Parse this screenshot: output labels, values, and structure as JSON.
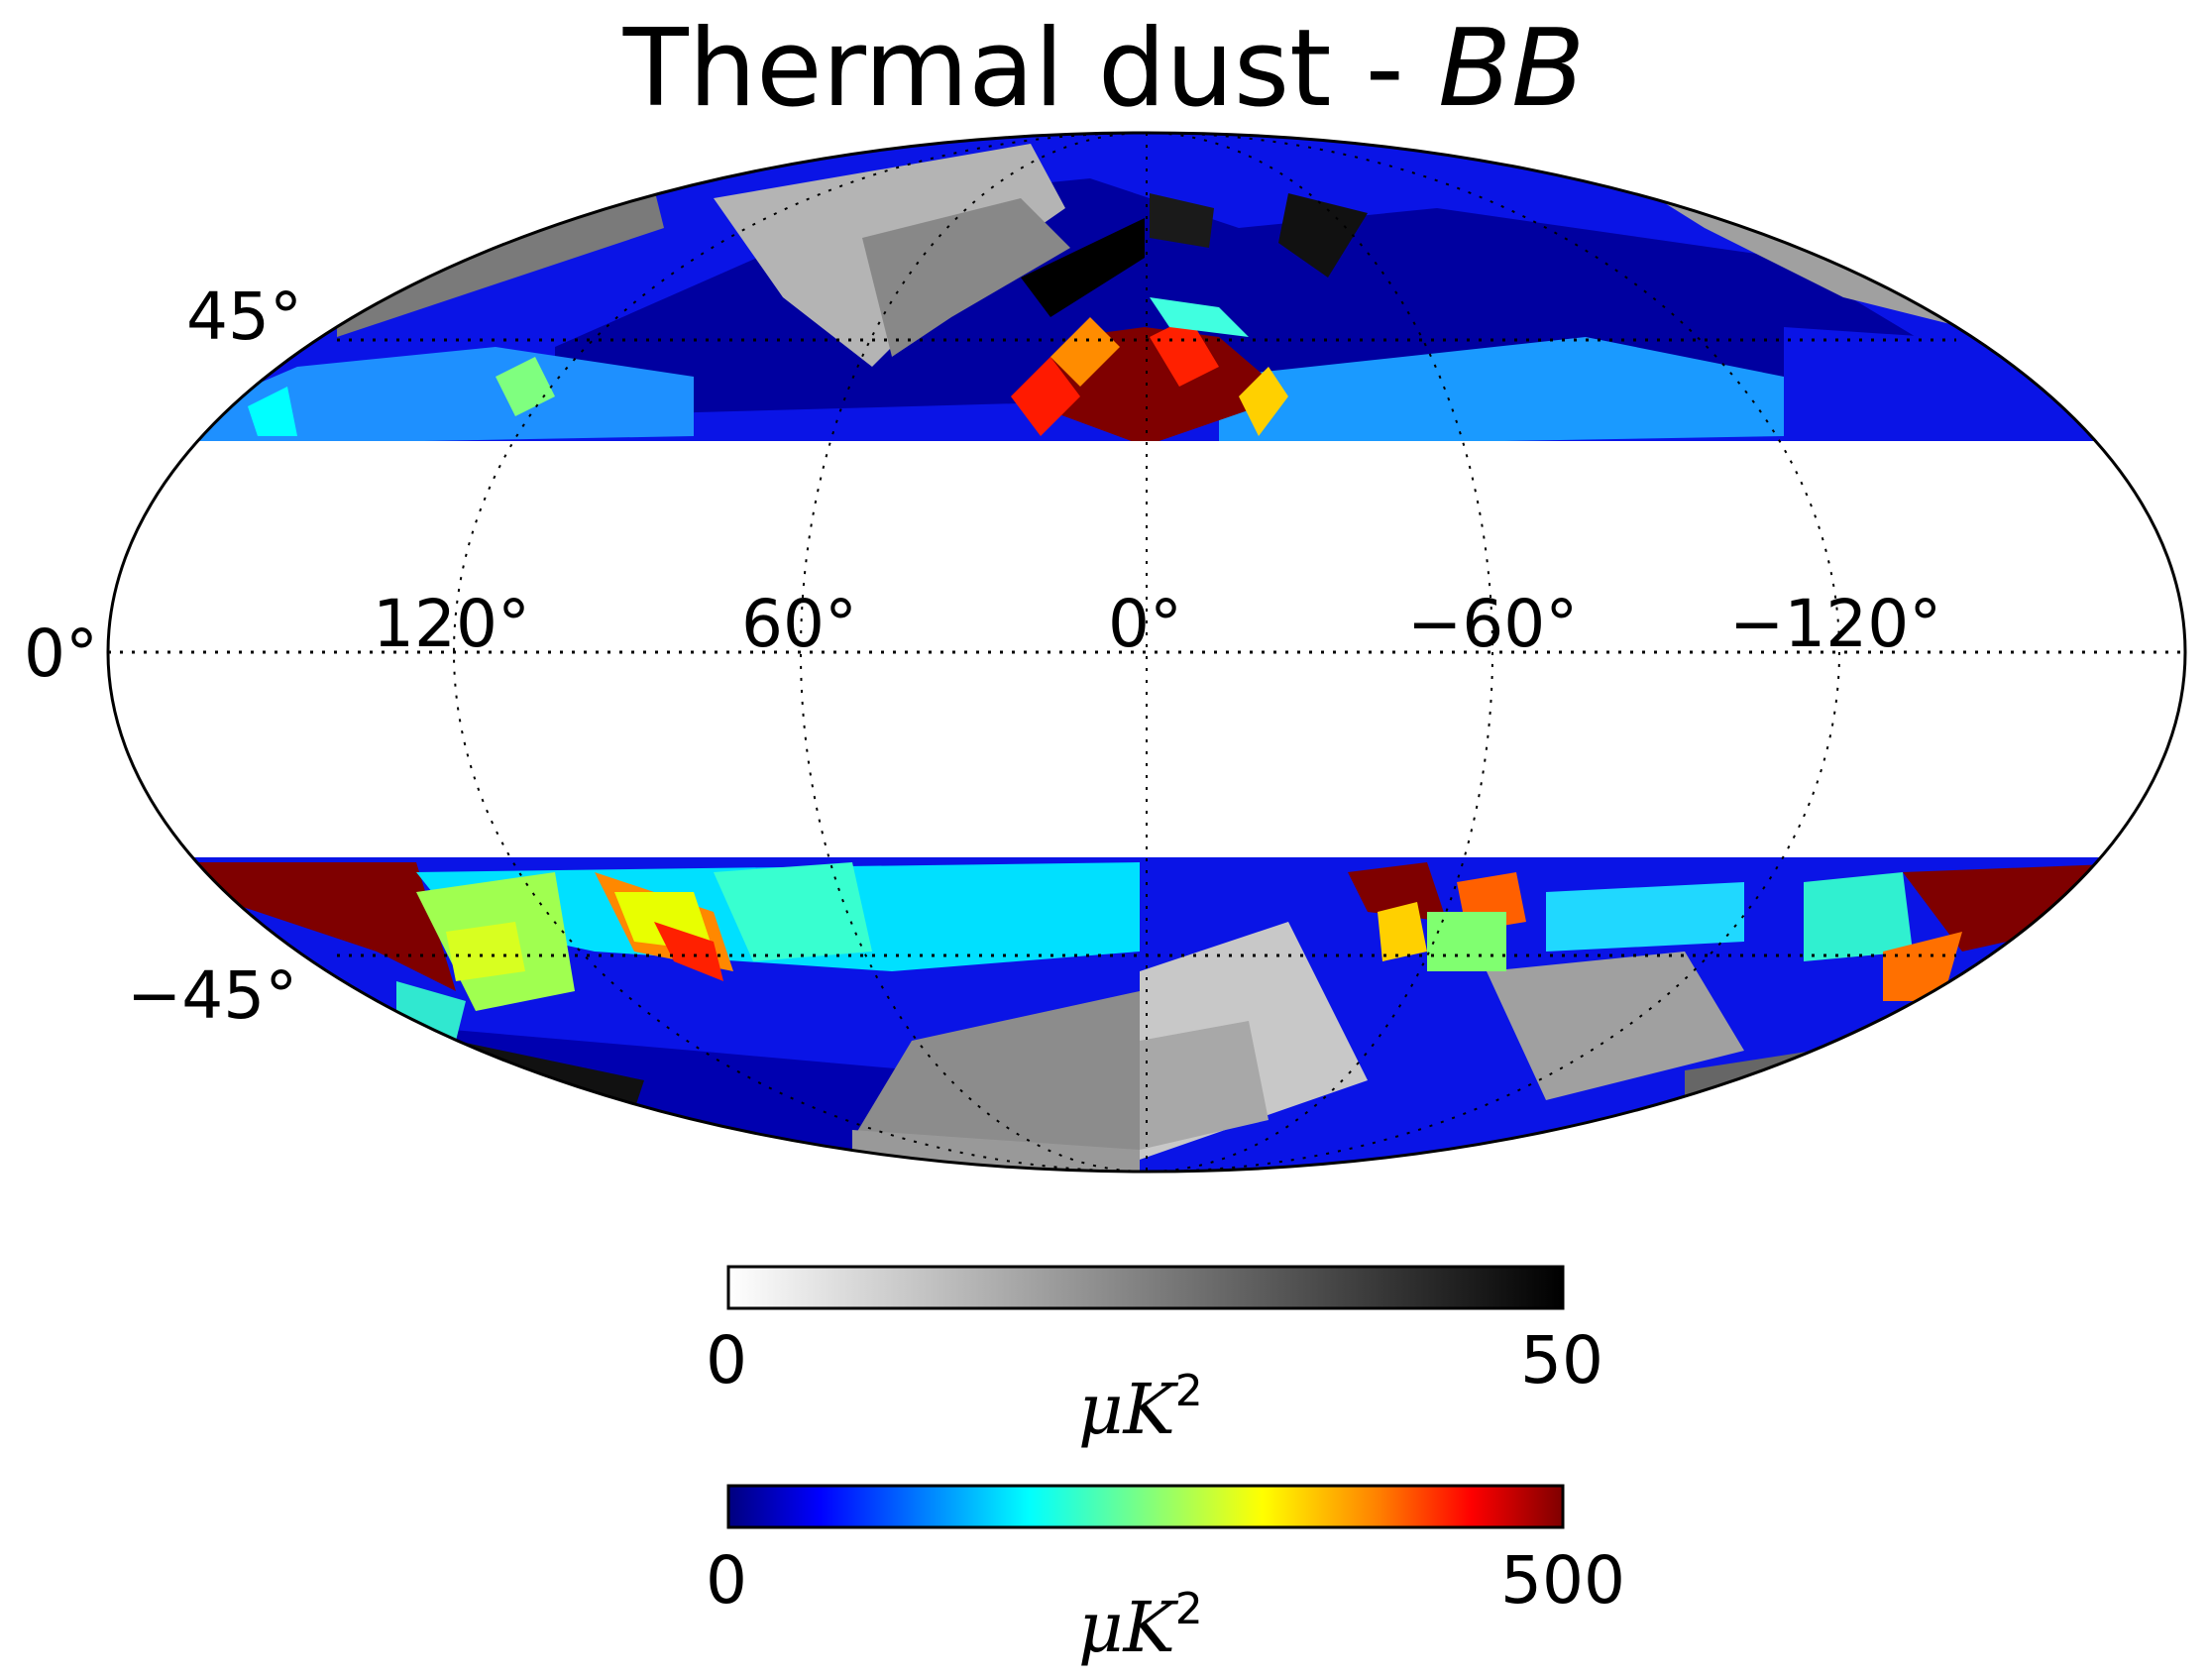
{
  "chart_data": {
    "type": "heatmap",
    "projection": "mollweide",
    "title_prefix": "Thermal dust - ",
    "title_italic": "BB",
    "longitude_ticks": [
      "120°",
      "60°",
      "0°",
      "−60°",
      "−120°"
    ],
    "latitude_ticks": [
      "45°",
      "0°",
      "−45°"
    ],
    "grid": true,
    "masked_band": "galactic plane (|b| < ~30°) left blank",
    "colorbars": [
      {
        "name": "gray",
        "colors": [
          "#ffffff",
          "#000000"
        ],
        "min_label": "0",
        "max_label": "50",
        "range": [
          0,
          50
        ],
        "unit_text": "μK",
        "unit_sup": "2"
      },
      {
        "name": "jet",
        "colors": [
          "#00007f",
          "#0000ff",
          "#00ffff",
          "#7fff7f",
          "#ffff00",
          "#ff7f00",
          "#ff0000",
          "#7f0000"
        ],
        "min_label": "0",
        "max_label": "500",
        "range": [
          0,
          500
        ],
        "unit_text": "μK",
        "unit_sup": "2"
      }
    ]
  }
}
